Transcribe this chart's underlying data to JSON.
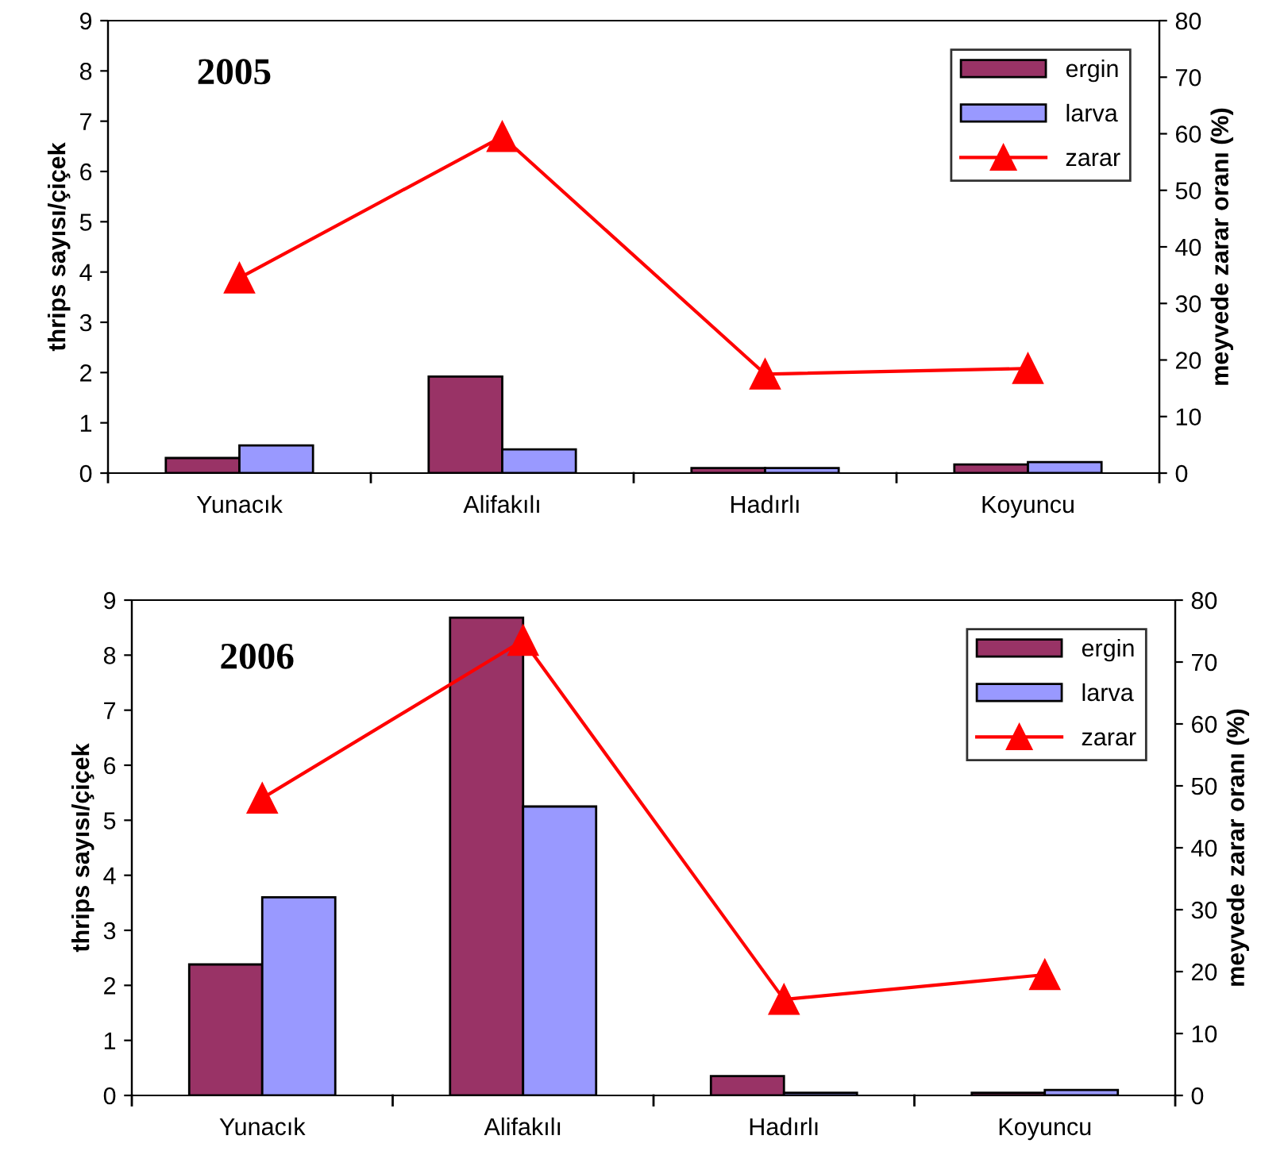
{
  "chart_data": [
    {
      "type": "bar",
      "title": "2005",
      "categories": [
        "Yunacık",
        "Alifakılı",
        "Hadırlı",
        "Koyuncu"
      ],
      "ylabel": "thrips sayısı/çiçek",
      "y2label": "meyvede zarar oranı (%)",
      "ylim": [
        0,
        9
      ],
      "yticks": [
        0,
        1,
        2,
        3,
        4,
        5,
        6,
        7,
        8,
        9
      ],
      "y2lim": [
        0,
        80
      ],
      "y2ticks": [
        0,
        10,
        20,
        30,
        40,
        50,
        60,
        70,
        80
      ],
      "legend": "top right",
      "grid": false,
      "series": [
        {
          "name": "ergin",
          "color": "#993366",
          "values": [
            0.3,
            1.92,
            0.1,
            0.17
          ]
        },
        {
          "name": "larva",
          "color": "#9999ff",
          "values": [
            0.55,
            0.47,
            0.1,
            0.22
          ]
        },
        {
          "name": "zarar",
          "type": "line",
          "axis": "y2",
          "color": "#ff0000",
          "marker": "triangle",
          "values": [
            34.5,
            59.5,
            17.5,
            18.5
          ]
        }
      ]
    },
    {
      "type": "bar",
      "title": "2006",
      "categories": [
        "Yunacık",
        "Alifakılı",
        "Hadırlı",
        "Koyuncu"
      ],
      "ylabel": "thrips sayısı/çiçek",
      "y2label": "meyvede zarar oranı (%)",
      "ylim": [
        0,
        9
      ],
      "yticks": [
        0,
        1,
        2,
        3,
        4,
        5,
        6,
        7,
        8,
        9
      ],
      "y2lim": [
        0,
        80
      ],
      "y2ticks": [
        0,
        10,
        20,
        30,
        40,
        50,
        60,
        70,
        80
      ],
      "legend": "top right",
      "grid": false,
      "series": [
        {
          "name": "ergin",
          "color": "#993366",
          "values": [
            2.38,
            8.68,
            0.35,
            0.05
          ]
        },
        {
          "name": "larva",
          "color": "#9999ff",
          "values": [
            3.6,
            5.25,
            0.05,
            0.1
          ]
        },
        {
          "name": "zarar",
          "type": "line",
          "axis": "y2",
          "color": "#ff0000",
          "marker": "triangle",
          "values": [
            48,
            73.5,
            15.5,
            19.5
          ]
        }
      ]
    }
  ]
}
